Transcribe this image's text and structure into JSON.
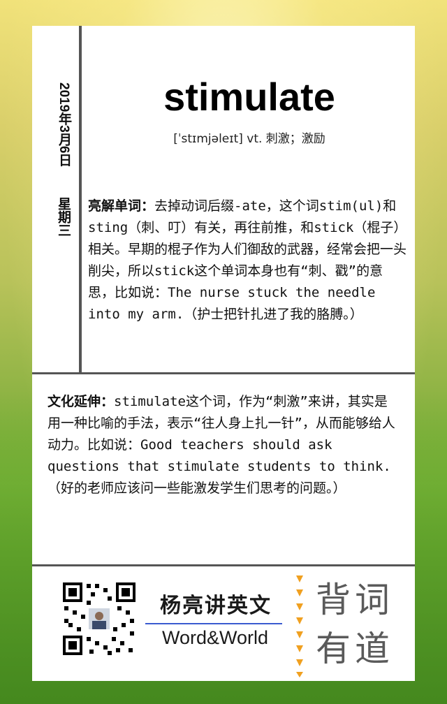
{
  "card": {
    "date": "2019年3月6日",
    "weekday": "星期三",
    "word": "stimulate",
    "phonetic": "[ˈstɪmjəleɪt] vt. 刺激；激励",
    "explain_label": "亮解单词：",
    "explain_text": "去掉动词后缀-ate，这个词stim(ul)和sting（刺、叮）有关，再往前推，和stick（棍子）相关。早期的棍子作为人们御敌的武器，经常会把一头削尖，所以stick这个单词本身也有“刺、戳”的意思，比如说：The nurse stuck the needle into my arm.（护士把针扎进了我的胳膊。）",
    "culture_label": "文化延伸：",
    "culture_text": "stimulate这个词，作为“刺激”来讲，其实是用一种比喻的手法，表示“往人身上扎一针”，从而能够给人动力。比如说：Good teachers should ask questions that stimulate students to think.（好的老师应该问一些能激发学生们思考的问题。）"
  },
  "footer": {
    "qr_icon": "qr-code",
    "brand_name": "杨亮讲英文",
    "brand_sub": "Word&World",
    "slogan_line1": "背词",
    "slogan_line2": "有道"
  },
  "colors": {
    "card_bg": "#ffffff",
    "rule": "#555555",
    "accent_blue": "#3a5bd0",
    "accent_orange": "#f0a020",
    "slogan_gray": "#5a5a5a"
  }
}
